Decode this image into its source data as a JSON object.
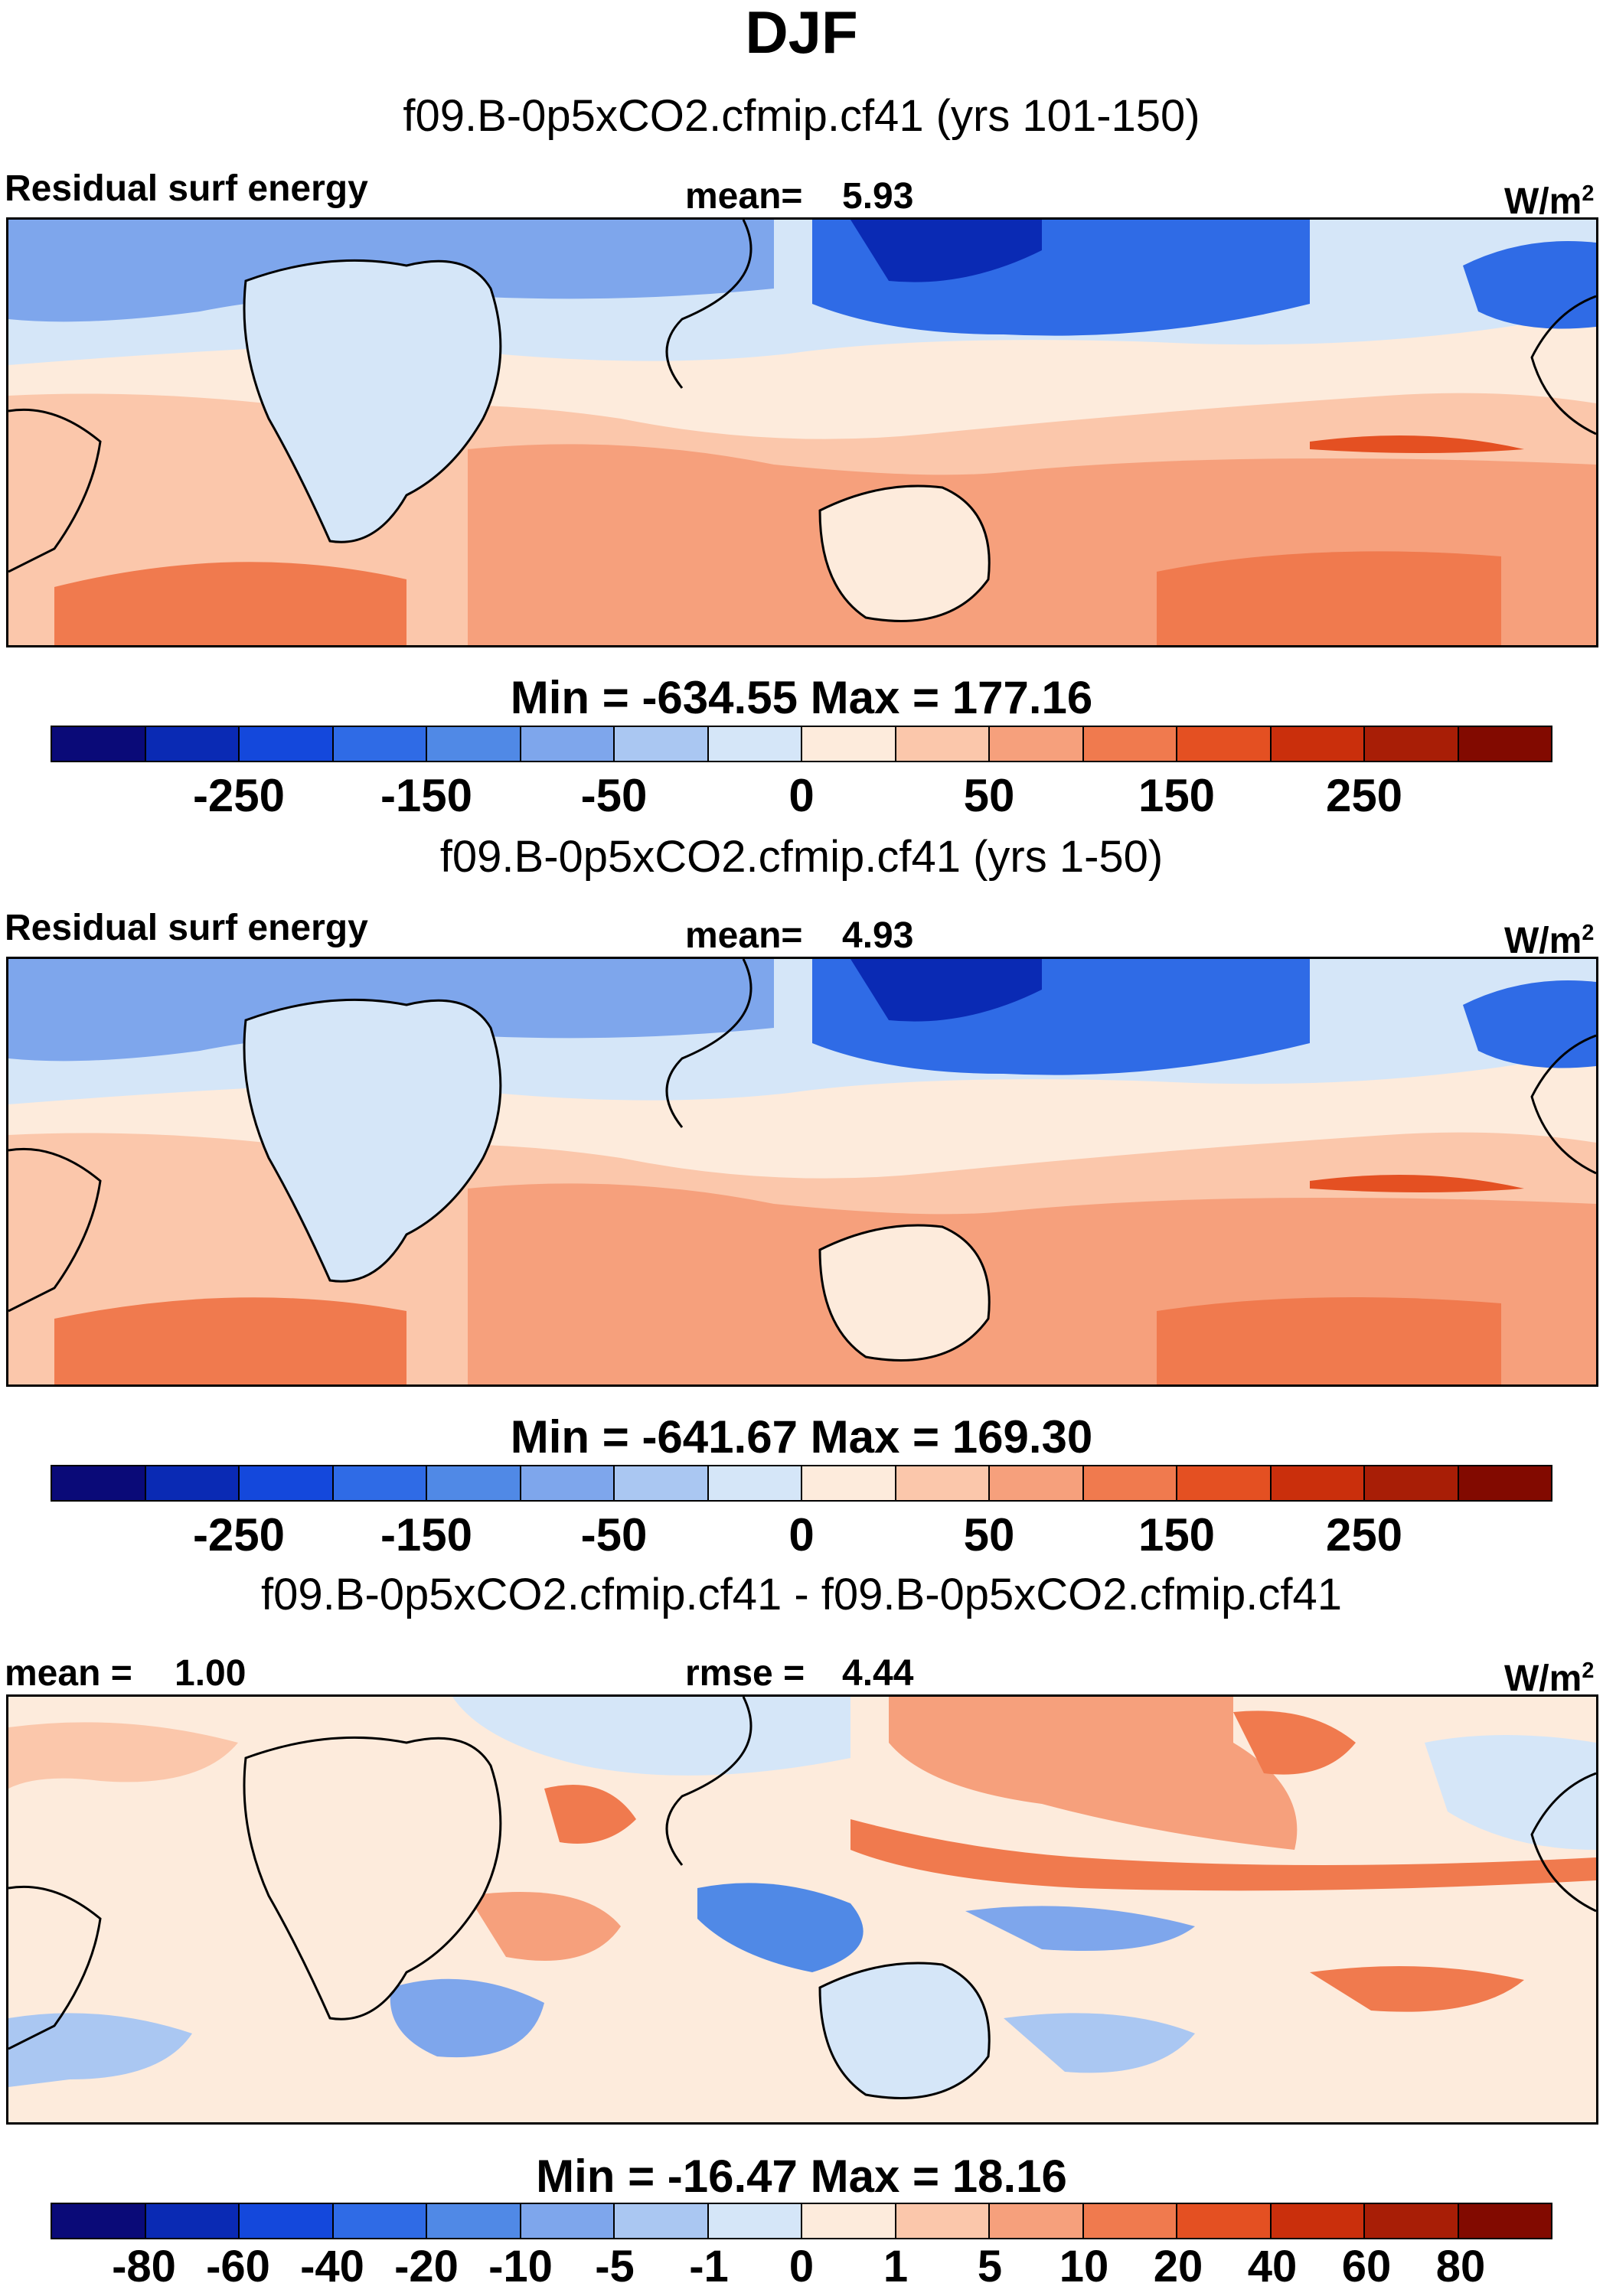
{
  "title": "DJF",
  "colors": [
    "#0a0a78",
    "#0a2ab4",
    "#1448dc",
    "#2f6be6",
    "#5089e6",
    "#7ea6ec",
    "#aac7f2",
    "#d5e6f8",
    "#fdebdc",
    "#fbc7ab",
    "#f6a07c",
    "#f07a4e",
    "#e45022",
    "#ca2f0c",
    "#a81e06",
    "#820a00"
  ],
  "units_base": "W/m",
  "units_exp": "2",
  "panels": [
    {
      "case": "f09.B-0p5xCO2.cfmip.cf41 (yrs 101-150)",
      "variable": "Residual surf energy",
      "stat_label": "mean=",
      "stat_value": "5.93",
      "min_label": "Min =",
      "min": "-634.55",
      "max_label": "Max =",
      "max": "177.16",
      "ticks": [
        "-250",
        "-150",
        "-50",
        "0",
        "50",
        "150",
        "250"
      ]
    },
    {
      "case": "f09.B-0p5xCO2.cfmip.cf41 (yrs 1-50)",
      "variable": "Residual surf energy",
      "stat_label": "mean=",
      "stat_value": "4.93",
      "min_label": "Min =",
      "min": "-641.67",
      "max_label": "Max =",
      "max": "169.30",
      "ticks": [
        "-250",
        "-150",
        "-50",
        "0",
        "50",
        "150",
        "250"
      ]
    },
    {
      "case": "f09.B-0p5xCO2.cfmip.cf41 - f09.B-0p5xCO2.cfmip.cf41",
      "left_label": "mean =",
      "left_value": "1.00",
      "stat_label": "rmse =",
      "stat_value": "4.44",
      "min_label": "Min =",
      "min": "-16.47",
      "max_label": "Max =",
      "max": "18.16",
      "ticks": [
        "-80",
        "-60",
        "-40",
        "-20",
        "-10",
        "-5",
        "-1",
        "0",
        "1",
        "5",
        "10",
        "20",
        "40",
        "60",
        "80"
      ]
    }
  ]
}
